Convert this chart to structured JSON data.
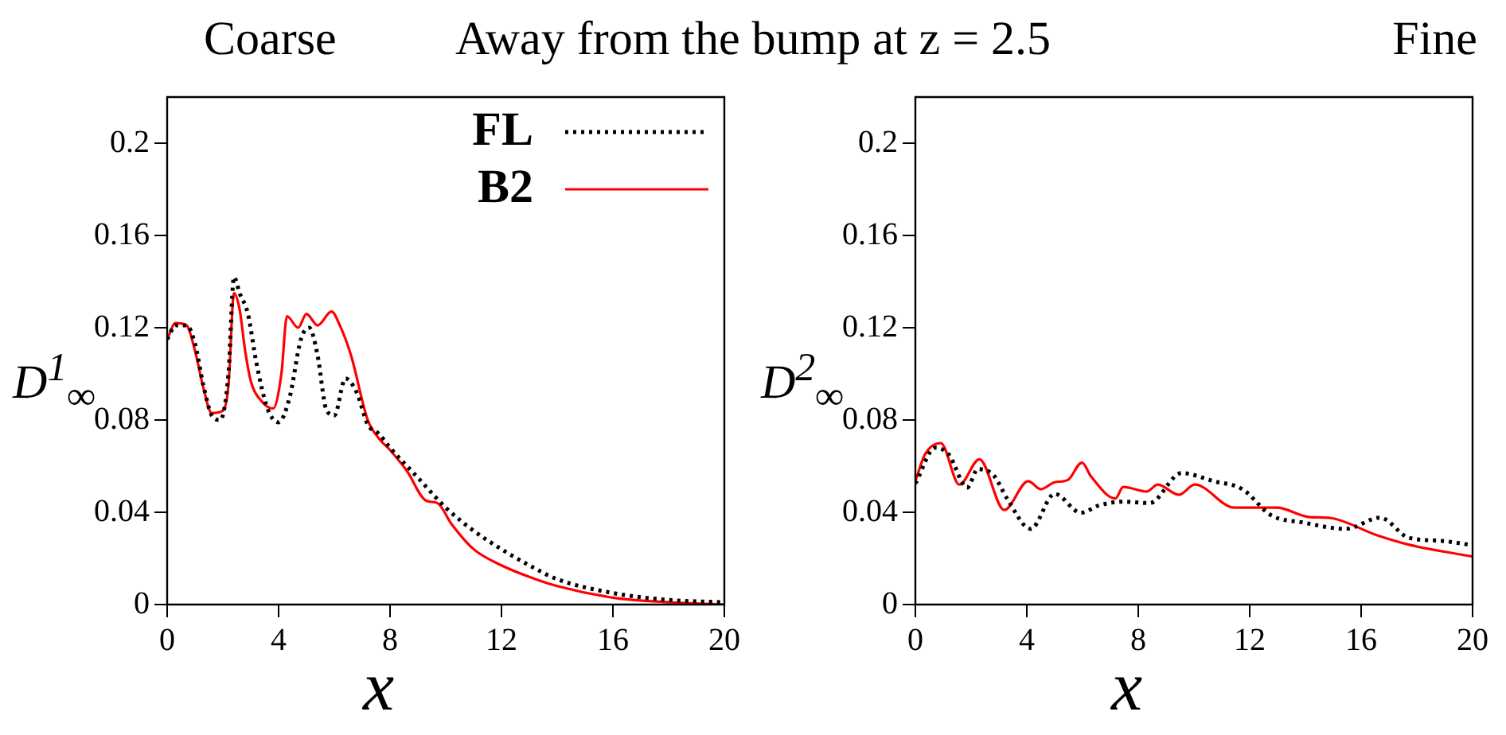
{
  "chart_data": [
    {
      "type": "line",
      "title": "Coarse",
      "annotations": [
        "Away from the bump at z = 2.5"
      ],
      "xlabel": "x",
      "ylabel": "D$^{1}$$_{∞}$",
      "xlim": [
        0,
        20
      ],
      "ylim": [
        0,
        0.22
      ],
      "xticks": [
        0,
        4,
        8,
        12,
        16,
        20
      ],
      "yticks": [
        0,
        0.04,
        0.08,
        0.12,
        0.16,
        0.2
      ],
      "grid": false,
      "legend": "top right",
      "marker": "none",
      "series": [
        {
          "name": "FL",
          "color": "#000000",
          "line_style": "dotted",
          "x": [
            0,
            0.3,
            0.7,
            1.0,
            1.3,
            1.6,
            1.9,
            2.2,
            2.4,
            2.6,
            2.9,
            3.2,
            3.6,
            4.0,
            4.4,
            4.8,
            5.1,
            5.4,
            5.7,
            6.0,
            6.4,
            6.8,
            7.2,
            7.6,
            8,
            9,
            10,
            11,
            12,
            13,
            14,
            16,
            18,
            20
          ],
          "values": [
            0.115,
            0.121,
            0.121,
            0.113,
            0.095,
            0.082,
            0.08,
            0.1,
            0.142,
            0.135,
            0.126,
            0.105,
            0.085,
            0.079,
            0.09,
            0.115,
            0.12,
            0.108,
            0.085,
            0.082,
            0.098,
            0.092,
            0.078,
            0.074,
            0.068,
            0.055,
            0.042,
            0.032,
            0.024,
            0.017,
            0.011,
            0.005,
            0.002,
            0.001
          ]
        },
        {
          "name": "B2",
          "color": "#ff0000",
          "line_style": "solid",
          "x": [
            0,
            0.3,
            0.7,
            1.0,
            1.3,
            1.6,
            2.0,
            2.2,
            2.4,
            2.6,
            2.8,
            3.0,
            3.4,
            3.8,
            4.1,
            4.3,
            4.7,
            5.0,
            5.4,
            5.9,
            6.2,
            6.6,
            7.2,
            7.6,
            8,
            8.6,
            9.3,
            9.7,
            10.2,
            11,
            12,
            13,
            14,
            16,
            18,
            20
          ],
          "values": [
            0.115,
            0.122,
            0.121,
            0.11,
            0.094,
            0.083,
            0.084,
            0.095,
            0.135,
            0.128,
            0.11,
            0.097,
            0.088,
            0.085,
            0.1,
            0.125,
            0.12,
            0.126,
            0.121,
            0.127,
            0.121,
            0.108,
            0.08,
            0.072,
            0.067,
            0.058,
            0.045,
            0.044,
            0.035,
            0.024,
            0.017,
            0.012,
            0.008,
            0.003,
            0.001,
            0
          ]
        }
      ]
    },
    {
      "type": "line",
      "title": "Fine",
      "xlabel": "x",
      "ylabel": "D$^{2}$$_{∞}$",
      "xlim": [
        0,
        20
      ],
      "ylim": [
        0,
        0.22
      ],
      "xticks": [
        0,
        4,
        8,
        12,
        16,
        20
      ],
      "yticks": [
        0,
        0.04,
        0.08,
        0.12,
        0.16,
        0.2
      ],
      "grid": false,
      "legend": false,
      "marker": "none",
      "series": [
        {
          "color": "#000000",
          "line_style": "dotted",
          "x": [
            0,
            0.72,
            1.2,
            1.86,
            2.24,
            2.81,
            3.29,
            4.14,
            5.0,
            5.94,
            6.6,
            7.46,
            8.41,
            9.55,
            10.7,
            11.74,
            12.77,
            13.9,
            15.46,
            16.68,
            17.7,
            18.9,
            20
          ],
          "values": [
            0.0525,
            0.068,
            0.065,
            0.0507,
            0.0587,
            0.056,
            0.046,
            0.0328,
            0.048,
            0.0398,
            0.043,
            0.0446,
            0.044,
            0.057,
            0.0535,
            0.05,
            0.0387,
            0.0356,
            0.0328,
            0.0377,
            0.029,
            0.0276,
            0.0257
          ]
        },
        {
          "color": "#ff0000",
          "line_style": "solid",
          "x": [
            0,
            0.34,
            0.91,
            1.58,
            2.3,
            3.19,
            4.05,
            4.5,
            5.0,
            5.47,
            5.98,
            6.3,
            7.18,
            7.46,
            8.3,
            8.7,
            9.46,
            10.03,
            11.45,
            12.97,
            14.1,
            14.9,
            16.58,
            17.7,
            20
          ],
          "values": [
            0.0535,
            0.065,
            0.07,
            0.052,
            0.063,
            0.041,
            0.0535,
            0.05,
            0.053,
            0.054,
            0.0615,
            0.0556,
            0.046,
            0.051,
            0.049,
            0.052,
            0.0476,
            0.052,
            0.042,
            0.042,
            0.038,
            0.0375,
            0.03,
            0.026,
            0.0208
          ]
        }
      ]
    }
  ]
}
